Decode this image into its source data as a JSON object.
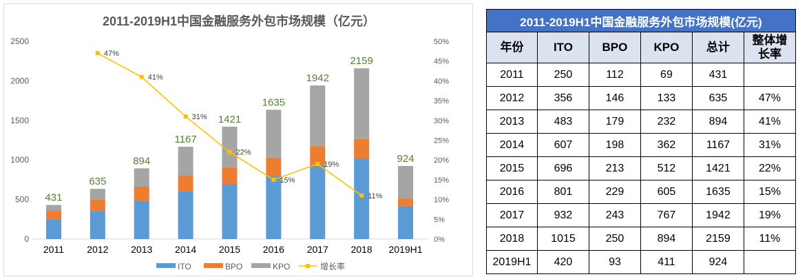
{
  "chart_data": {
    "type": "bar",
    "stacked": true,
    "title": "2011-2019H1中国金融服务外包市场规模（亿元）",
    "categories": [
      "2011",
      "2012",
      "2013",
      "2014",
      "2015",
      "2016",
      "2017",
      "2018",
      "2019H1"
    ],
    "series": [
      {
        "name": "ITO",
        "color": "#5b9bd5",
        "values": [
          250,
          356,
          483,
          607,
          696,
          801,
          932,
          1015,
          420
        ]
      },
      {
        "name": "BPO",
        "color": "#ed7d31",
        "values": [
          112,
          146,
          179,
          198,
          213,
          229,
          243,
          250,
          93
        ]
      },
      {
        "name": "KPO",
        "color": "#a5a5a5",
        "values": [
          69,
          133,
          232,
          362,
          512,
          605,
          767,
          894,
          411
        ]
      }
    ],
    "totals": [
      431,
      635,
      894,
      1167,
      1421,
      1635,
      1942,
      2159,
      924
    ],
    "totals_label_color": "#548235",
    "line_series": {
      "name": "增长率",
      "color": "#ffc000",
      "axis": "secondary",
      "categories": [
        "2012",
        "2013",
        "2014",
        "2015",
        "2016",
        "2017",
        "2018"
      ],
      "values": [
        47,
        41,
        31,
        22,
        15,
        19,
        11
      ],
      "labels": [
        "47%",
        "41%",
        "31%",
        "22%",
        "15%",
        "19%",
        "11%"
      ]
    },
    "y_primary": {
      "min": 0,
      "max": 2500,
      "ticks": [
        "0",
        "500",
        "1000",
        "1500",
        "2000",
        "2500"
      ]
    },
    "y_secondary": {
      "min": 0,
      "max": 50,
      "ticks": [
        "0%",
        "5%",
        "10%",
        "15%",
        "20%",
        "25%",
        "30%",
        "35%",
        "40%",
        "45%",
        "50%"
      ]
    },
    "grid": false,
    "legend_position": "bottom"
  },
  "table": {
    "title": "2011-2019H1中国金融服务外包市场规模(亿元)",
    "headers": [
      "年份",
      "ITO",
      "BPO",
      "KPO",
      "总计",
      "整体增长率"
    ],
    "rows": [
      [
        "2011",
        "250",
        "112",
        "69",
        "431",
        ""
      ],
      [
        "2012",
        "356",
        "146",
        "133",
        "635",
        "47%"
      ],
      [
        "2013",
        "483",
        "179",
        "232",
        "894",
        "41%"
      ],
      [
        "2014",
        "607",
        "198",
        "362",
        "1167",
        "31%"
      ],
      [
        "2015",
        "696",
        "213",
        "512",
        "1421",
        "22%"
      ],
      [
        "2016",
        "801",
        "229",
        "605",
        "1635",
        "15%"
      ],
      [
        "2017",
        "932",
        "243",
        "767",
        "1942",
        "19%"
      ],
      [
        "2018",
        "1015",
        "250",
        "894",
        "2159",
        "11%"
      ],
      [
        "2019H1",
        "420",
        "93",
        "411",
        "924",
        ""
      ]
    ]
  }
}
